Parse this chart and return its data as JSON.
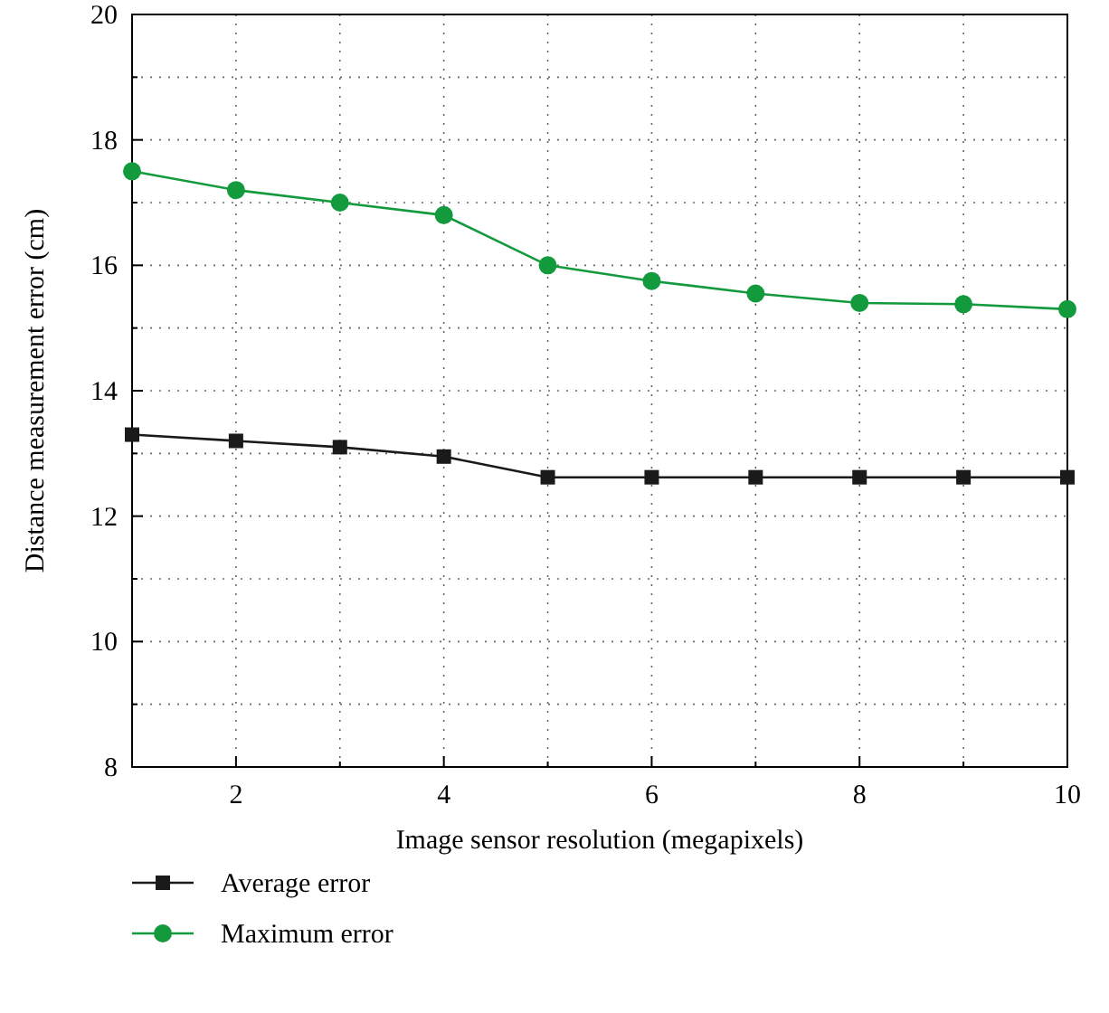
{
  "chart_data": {
    "type": "line",
    "xlabel": "Image sensor resolution (megapixels)",
    "ylabel": "Distance measurement error (cm)",
    "x": [
      1,
      2,
      3,
      4,
      5,
      6,
      7,
      8,
      9,
      10
    ],
    "series": [
      {
        "name": "Average error",
        "color": "#1a1a1a",
        "marker": "square",
        "values": [
          13.3,
          13.2,
          13.1,
          12.95,
          12.62,
          12.62,
          12.62,
          12.62,
          12.62,
          12.62
        ]
      },
      {
        "name": "Maximum error",
        "color": "#139a3c",
        "marker": "circle",
        "values": [
          17.5,
          17.2,
          17.0,
          16.8,
          16.0,
          15.75,
          15.55,
          15.4,
          15.38,
          15.3
        ]
      }
    ],
    "xlim": [
      1,
      10
    ],
    "xticks": [
      {
        "value": 1,
        "label": null
      },
      2,
      {
        "value": 3,
        "label": null
      },
      4,
      {
        "value": 5,
        "label": null
      },
      6,
      {
        "value": 7,
        "label": null
      },
      8,
      {
        "value": 9,
        "label": null
      },
      10
    ],
    "ylim": [
      8,
      20
    ],
    "yticks": [
      8,
      {
        "value": 9,
        "label": null
      },
      10,
      {
        "value": 11,
        "label": null
      },
      12,
      {
        "value": 13,
        "label": null
      },
      14,
      {
        "value": 15,
        "label": null
      },
      16,
      {
        "value": 17,
        "label": null
      },
      18,
      {
        "value": 19,
        "label": null
      },
      20
    ],
    "grid": true,
    "legend": "bottom left",
    "line_style": "solid"
  }
}
